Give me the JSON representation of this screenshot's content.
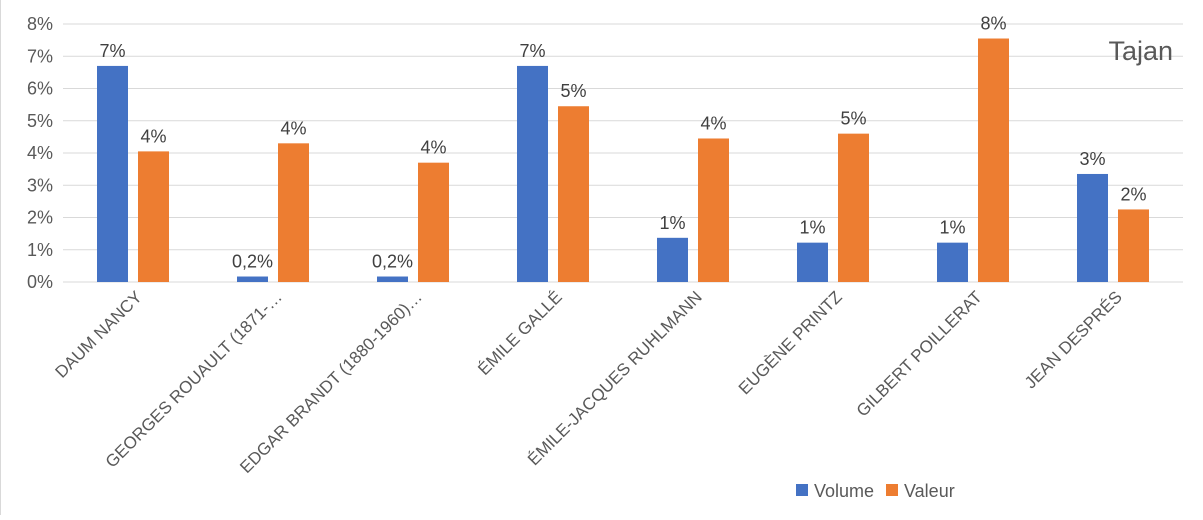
{
  "chart_data": {
    "type": "bar",
    "title": "Tajan",
    "categories": [
      "DAUM NANCY",
      "GEORGES ROUAULT (1871-…",
      "EDGAR BRANDT (1880-1960)…",
      "ÉMILE GALLÉ",
      "ÉMILE-JACQUES RUHLMANN",
      "EUGÈNE PRINTZ",
      "GILBERT POILLERAT",
      "JEAN DESPRÉS"
    ],
    "series": [
      {
        "name": "Volume",
        "color": "#4472C4",
        "values": [
          6.7,
          0.17,
          0.17,
          6.7,
          1.37,
          1.22,
          1.22,
          3.35
        ],
        "labels": [
          "7%",
          "0,2%",
          "0,2%",
          "7%",
          "1%",
          "1%",
          "1%",
          "3%"
        ]
      },
      {
        "name": "Valeur",
        "color": "#ED7D31",
        "values": [
          4.05,
          4.3,
          3.7,
          5.45,
          4.45,
          4.6,
          7.55,
          2.25
        ],
        "labels": [
          "4%",
          "4%",
          "4%",
          "5%",
          "4%",
          "5%",
          "8%",
          "2%"
        ]
      }
    ],
    "ylim": [
      0,
      8
    ],
    "yticks": [
      "0%",
      "1%",
      "2%",
      "3%",
      "4%",
      "5%",
      "6%",
      "7%",
      "8%"
    ],
    "grid": true,
    "legend": "bottom-right",
    "xlabel": "",
    "ylabel": ""
  }
}
